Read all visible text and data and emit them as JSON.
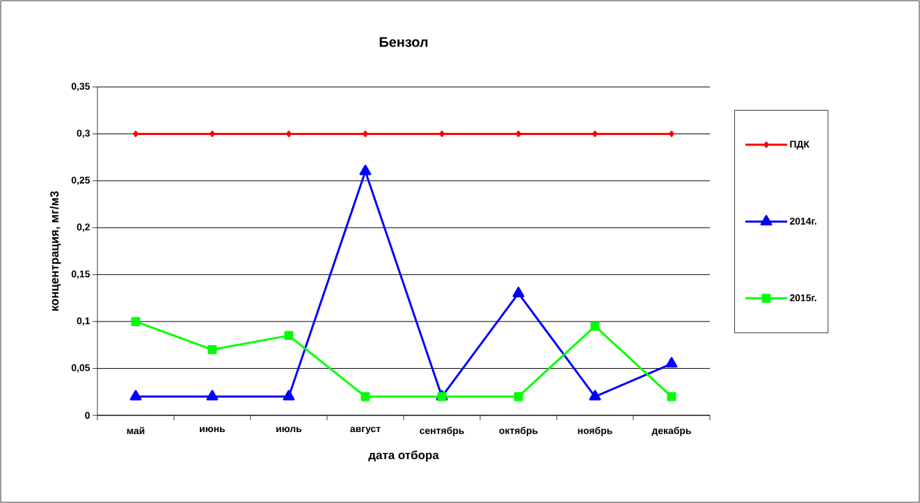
{
  "chart_data": {
    "type": "line",
    "title": "Бензол",
    "xlabel": "дата отбора",
    "ylabel": "концентрация, мг/м3",
    "categories": [
      "май",
      "июнь",
      "июль",
      "август",
      "сентябрь",
      "октябрь",
      "ноябрь",
      "декабрь"
    ],
    "series": [
      {
        "name": "ПДК",
        "color": "#ff0000",
        "marker": "diamond",
        "values": [
          0.3,
          0.3,
          0.3,
          0.3,
          0.3,
          0.3,
          0.3,
          0.3
        ]
      },
      {
        "name": "2014г.",
        "color": "#0000ff",
        "marker": "triangle",
        "values": [
          0.02,
          0.02,
          0.02,
          0.26,
          0.02,
          0.13,
          0.02,
          0.055
        ]
      },
      {
        "name": "2015г.",
        "color": "#00ff00",
        "marker": "square",
        "values": [
          0.1,
          0.07,
          0.085,
          0.02,
          0.02,
          0.02,
          0.095,
          0.02
        ]
      }
    ],
    "ylim": [
      0,
      0.35
    ],
    "yticks": [
      {
        "value": 0,
        "label": "0"
      },
      {
        "value": 0.05,
        "label": "0,05"
      },
      {
        "value": 0.1,
        "label": "0,1"
      },
      {
        "value": 0.15,
        "label": "0,15"
      },
      {
        "value": 0.2,
        "label": "0,2"
      },
      {
        "value": 0.25,
        "label": "0,25"
      },
      {
        "value": 0.3,
        "label": "0,3"
      },
      {
        "value": 0.35,
        "label": "0,35"
      }
    ],
    "grid": "y",
    "legend": "right",
    "line_style": "solid"
  }
}
